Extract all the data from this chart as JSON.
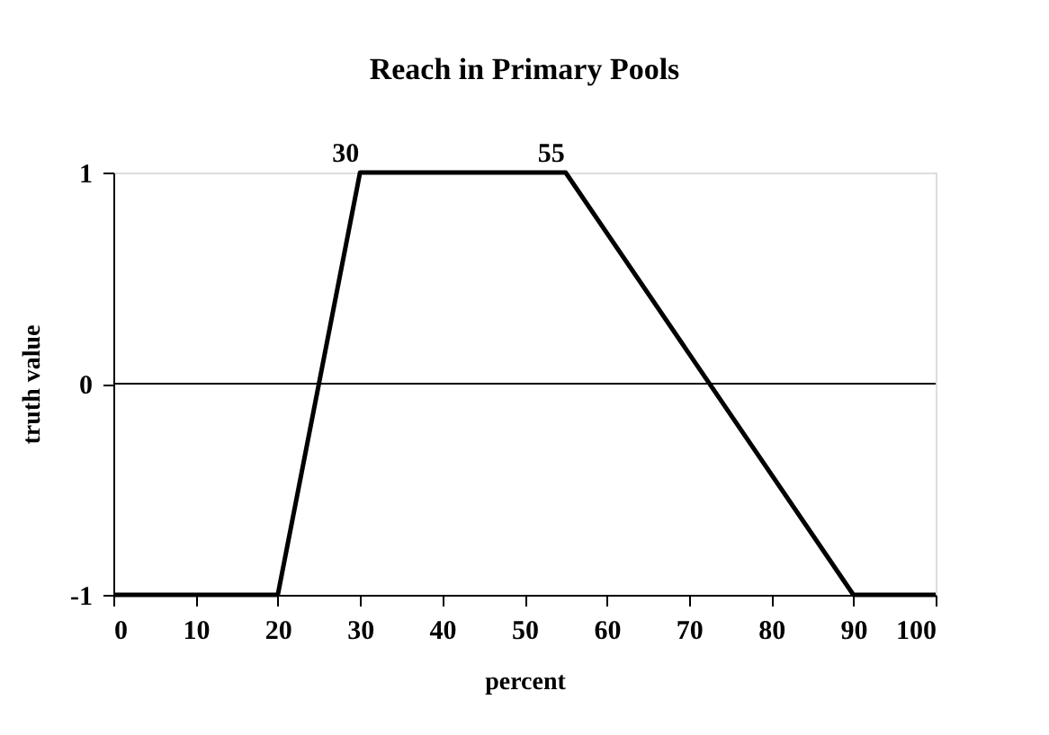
{
  "chart_data": {
    "type": "line",
    "title": "Reach in Primary Pools",
    "xlabel": "percent",
    "ylabel": "truth value",
    "x": [
      0,
      20,
      30,
      55,
      90,
      100
    ],
    "series": [
      {
        "color": "#000000",
        "values": [
          -1,
          -1,
          1,
          1,
          -1,
          -1
        ]
      }
    ],
    "xlim": [
      0,
      100
    ],
    "xticks": [
      0,
      10,
      20,
      30,
      40,
      50,
      60,
      70,
      80,
      90,
      100
    ],
    "ylim": [
      -1,
      1
    ],
    "yticks": [
      -1,
      0,
      1
    ],
    "ref_lines": [
      {
        "axis": "y",
        "value": 0,
        "color": "#000000",
        "line_style": "solid"
      }
    ],
    "annotations": [
      {
        "text": "30",
        "x": 30,
        "y": 1
      },
      {
        "text": "55",
        "x": 55,
        "y": 1
      }
    ],
    "grid": false,
    "marker": "none",
    "line_style": "solid"
  }
}
